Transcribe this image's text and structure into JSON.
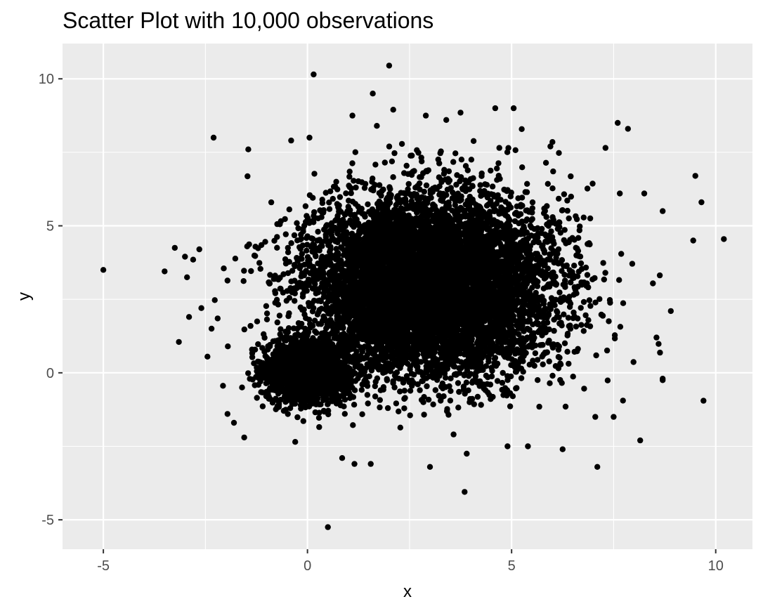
{
  "chart_data": {
    "type": "scatter",
    "title": "Scatter Plot with 10,000 observations",
    "xlabel": "x",
    "ylabel": "y",
    "xlim": [
      -6.0,
      10.9
    ],
    "ylim": [
      -6.0,
      11.2
    ],
    "x_ticks": [
      -5,
      0,
      5,
      10
    ],
    "y_ticks": [
      -5,
      0,
      5,
      10
    ],
    "x_tick_labels": [
      "-5",
      "0",
      "5",
      "10"
    ],
    "y_tick_labels": [
      "-5",
      "0",
      "5",
      "10"
    ],
    "grid": true,
    "legend": "none",
    "point_color": "#000000",
    "panel_background": "#ebebeb",
    "observations": 10000,
    "clusters": [
      {
        "center_x": 0,
        "center_y": 0,
        "sd_x": 0.5,
        "sd_y": 0.5,
        "n": 2000
      },
      {
        "center_x": 3,
        "center_y": 3,
        "sd_x": 1.5,
        "sd_y": 1.5,
        "n": 8000
      }
    ],
    "points": [
      [
        -5.0,
        3.5
      ],
      [
        -3.5,
        3.45
      ],
      [
        -3.25,
        4.25
      ],
      [
        -3.15,
        1.05
      ],
      [
        -3.0,
        3.95
      ],
      [
        -2.95,
        3.25
      ],
      [
        -2.9,
        1.9
      ],
      [
        -2.8,
        3.85
      ],
      [
        -2.65,
        4.2
      ],
      [
        -2.6,
        2.2
      ],
      [
        -2.45,
        0.55
      ],
      [
        -2.35,
        1.5
      ],
      [
        -2.3,
        8.0
      ],
      [
        -2.2,
        1.85
      ],
      [
        -2.05,
        3.55
      ],
      [
        -1.95,
        0.9
      ],
      [
        -1.8,
        -1.7
      ],
      [
        -1.55,
        -2.2
      ],
      [
        -0.3,
        -2.35
      ],
      [
        0.15,
        10.15
      ],
      [
        2.0,
        10.45
      ],
      [
        0.5,
        -5.25
      ],
      [
        3.85,
        -4.05
      ],
      [
        1.6,
        9.5
      ],
      [
        7.6,
        8.5
      ],
      [
        7.85,
        8.3
      ],
      [
        9.5,
        6.7
      ],
      [
        9.45,
        4.5
      ],
      [
        9.65,
        5.8
      ],
      [
        10.2,
        4.55
      ],
      [
        9.7,
        -0.95
      ],
      [
        8.15,
        -2.3
      ],
      [
        7.1,
        -3.2
      ],
      [
        6.25,
        -2.6
      ],
      [
        3.0,
        -3.2
      ],
      [
        3.9,
        -2.75
      ],
      [
        1.15,
        -3.1
      ],
      [
        1.55,
        -3.1
      ],
      [
        0.85,
        -2.9
      ],
      [
        8.7,
        -0.2
      ],
      [
        8.7,
        -0.25
      ],
      [
        8.9,
        2.1
      ],
      [
        8.55,
        1.2
      ],
      [
        7.5,
        -1.5
      ],
      [
        7.05,
        -1.5
      ],
      [
        5.4,
        -2.5
      ],
      [
        4.9,
        -2.5
      ],
      [
        2.9,
        8.75
      ],
      [
        3.75,
        8.85
      ],
      [
        4.6,
        9.0
      ],
      [
        5.05,
        9.0
      ],
      [
        2.1,
        8.95
      ],
      [
        1.1,
        8.75
      ],
      [
        7.3,
        7.65
      ],
      [
        6.0,
        7.85
      ],
      [
        4.7,
        7.65
      ],
      [
        8.25,
        6.1
      ],
      [
        8.7,
        5.5
      ],
      [
        7.65,
        6.1
      ],
      [
        5.95,
        7.7
      ],
      [
        -1.45,
        7.6
      ],
      [
        -0.4,
        7.9
      ],
      [
        0.05,
        8.0
      ],
      [
        1.7,
        8.4
      ],
      [
        3.4,
        8.6
      ]
    ]
  }
}
